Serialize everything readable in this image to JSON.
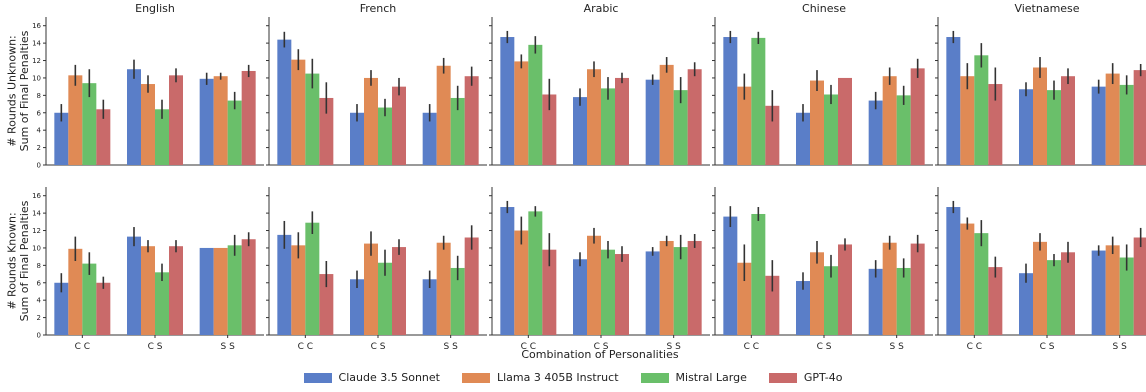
{
  "chart_data": {
    "type": "bar",
    "languages": [
      "English",
      "French",
      "Arabic",
      "Chinese",
      "Vietnamese"
    ],
    "categories": [
      "C C",
      "C S",
      "S S"
    ],
    "xlabel": "Combination of Personalities",
    "ylim": [
      0,
      17
    ],
    "yticks": [
      0,
      2,
      4,
      6,
      8,
      10,
      12,
      14,
      16
    ],
    "series": [
      {
        "name": "Claude 3.5 Sonnet",
        "color": "#5a7ec8"
      },
      {
        "name": "Llama 3 405B Instruct",
        "color": "#e08a55"
      },
      {
        "name": "Mistral Large",
        "color": "#6abf6a"
      },
      {
        "name": "GPT-4o",
        "color": "#c96a6a"
      }
    ],
    "rows": [
      {
        "ylabel_lines": [
          "# Rounds Unknown:",
          "Sum of Final Penalties"
        ],
        "panels": [
          {
            "values": [
              [
                6.0,
                10.3,
                9.4,
                6.4
              ],
              [
                11.0,
                9.3,
                6.4,
                10.3
              ],
              [
                9.9,
                10.2,
                7.4,
                10.8
              ]
            ],
            "errors": [
              [
                1.0,
                1.2,
                1.6,
                1.1
              ],
              [
                1.1,
                1.0,
                1.1,
                0.8
              ],
              [
                0.7,
                0.4,
                1.0,
                0.7
              ]
            ]
          },
          {
            "values": [
              [
                14.4,
                12.1,
                10.5,
                7.7
              ],
              [
                6.0,
                10.0,
                6.6,
                9.0
              ],
              [
                6.0,
                11.4,
                7.7,
                10.2
              ]
            ],
            "errors": [
              [
                0.9,
                1.2,
                1.7,
                1.8
              ],
              [
                1.0,
                0.9,
                1.0,
                1.0
              ],
              [
                1.0,
                0.9,
                1.4,
                1.1
              ]
            ]
          },
          {
            "values": [
              [
                14.7,
                11.9,
                13.8,
                8.1
              ],
              [
                7.8,
                11.0,
                8.8,
                10.0
              ],
              [
                9.8,
                11.5,
                8.6,
                11.0
              ]
            ],
            "errors": [
              [
                0.7,
                0.8,
                1.0,
                1.8
              ],
              [
                1.0,
                0.9,
                1.3,
                0.6
              ],
              [
                0.6,
                0.9,
                1.5,
                0.8
              ]
            ]
          },
          {
            "values": [
              [
                14.7,
                9.0,
                14.6,
                6.8
              ],
              [
                6.0,
                9.7,
                8.1,
                10.0
              ],
              [
                7.4,
                10.2,
                8.0,
                11.1
              ]
            ],
            "errors": [
              [
                0.7,
                1.5,
                0.7,
                1.8
              ],
              [
                1.0,
                1.2,
                1.1,
                0.0
              ],
              [
                1.0,
                1.0,
                1.1,
                1.1
              ]
            ]
          },
          {
            "values": [
              [
                14.7,
                10.2,
                12.6,
                9.3
              ],
              [
                8.7,
                11.2,
                8.6,
                10.2
              ],
              [
                9.0,
                10.5,
                9.2,
                10.9
              ]
            ],
            "errors": [
              [
                0.7,
                1.5,
                1.4,
                1.9
              ],
              [
                0.8,
                1.2,
                1.1,
                0.9
              ],
              [
                0.8,
                1.2,
                1.1,
                0.7
              ]
            ]
          }
        ]
      },
      {
        "ylabel_lines": [
          "# Rounds Known:",
          "Sum of Final Penalties"
        ],
        "panels": [
          {
            "values": [
              [
                6.0,
                9.9,
                8.2,
                6.0
              ],
              [
                11.3,
                10.2,
                7.2,
                10.2
              ],
              [
                10.0,
                10.0,
                10.3,
                11.0
              ]
            ],
            "errors": [
              [
                1.1,
                1.4,
                1.3,
                0.7
              ],
              [
                1.1,
                0.7,
                1.0,
                0.7
              ],
              [
                0.0,
                0.0,
                1.2,
                0.8
              ]
            ]
          },
          {
            "values": [
              [
                11.5,
                10.3,
                12.9,
                7.0
              ],
              [
                6.4,
                10.5,
                8.3,
                10.1
              ],
              [
                6.4,
                10.6,
                7.7,
                11.2
              ]
            ],
            "errors": [
              [
                1.6,
                1.5,
                1.3,
                1.5
              ],
              [
                1.0,
                1.4,
                1.5,
                0.9
              ],
              [
                1.0,
                0.8,
                1.4,
                1.4
              ]
            ]
          },
          {
            "values": [
              [
                14.7,
                12.0,
                14.2,
                9.8
              ],
              [
                8.7,
                11.4,
                9.8,
                9.3
              ],
              [
                9.6,
                10.8,
                10.1,
                10.8
              ]
            ],
            "errors": [
              [
                0.7,
                1.6,
                0.6,
                1.9
              ],
              [
                0.8,
                0.9,
                1.0,
                0.9
              ],
              [
                0.5,
                0.6,
                1.4,
                0.8
              ]
            ]
          },
          {
            "values": [
              [
                13.6,
                8.3,
                13.9,
                6.8
              ],
              [
                6.2,
                9.5,
                7.9,
                10.4
              ],
              [
                7.6,
                10.6,
                7.7,
                10.5
              ]
            ],
            "errors": [
              [
                1.2,
                2.1,
                0.8,
                1.8
              ],
              [
                1.0,
                1.3,
                1.3,
                0.7
              ],
              [
                1.0,
                0.8,
                1.1,
                1.0
              ]
            ]
          },
          {
            "values": [
              [
                14.7,
                12.8,
                11.7,
                7.8
              ],
              [
                7.1,
                10.7,
                8.6,
                9.5
              ],
              [
                9.7,
                10.3,
                8.9,
                11.2
              ]
            ],
            "errors": [
              [
                0.7,
                0.7,
                1.5,
                1.2
              ],
              [
                1.1,
                1.0,
                0.7,
                1.2
              ],
              [
                0.6,
                1.0,
                1.5,
                1.1
              ]
            ]
          }
        ]
      }
    ]
  }
}
